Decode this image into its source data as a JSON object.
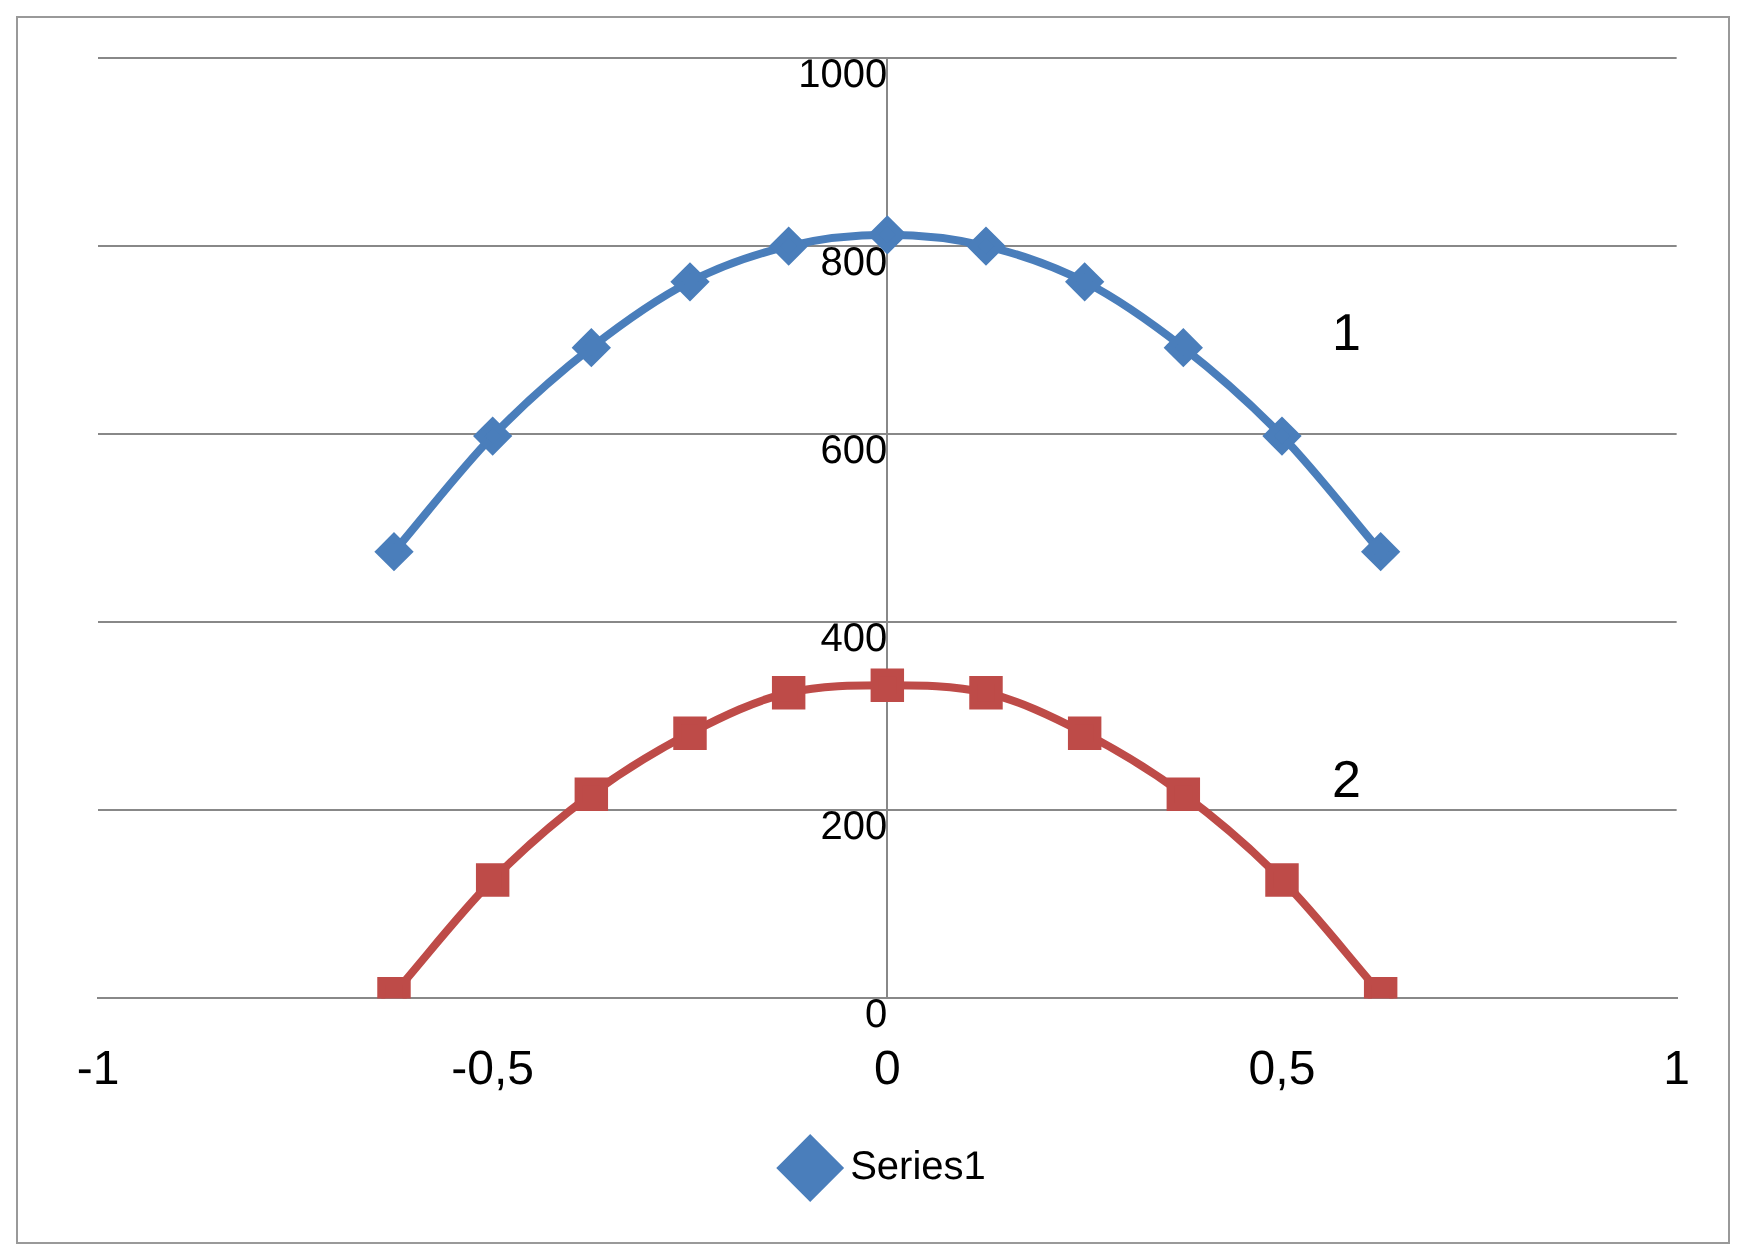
{
  "chart_data": {
    "type": "line",
    "x": [
      -0.625,
      -0.5,
      -0.375,
      -0.25,
      -0.125,
      0,
      0.125,
      0.25,
      0.375,
      0.5,
      0.625
    ],
    "series": [
      {
        "name": "Series1",
        "color": "#4a7ebb",
        "marker": "diamond",
        "values": [
          475,
          598,
          692,
          762,
          800,
          812,
          800,
          762,
          692,
          598,
          475
        ]
      },
      {
        "color": "#be4b48",
        "marker": "square",
        "values": [
          5,
          126,
          217,
          282,
          325,
          333,
          325,
          282,
          217,
          126,
          5
        ]
      }
    ],
    "xlim": [
      -1,
      1
    ],
    "xticks": [
      -1,
      {
        "value": -0.5,
        "label": "-0,5"
      },
      0,
      {
        "value": 0.5,
        "label": "0,5"
      },
      1
    ],
    "ylim": [
      0,
      1000
    ],
    "yticks": [
      0,
      200,
      400,
      600,
      800,
      1000
    ],
    "grid": "y",
    "legend": "bottom",
    "annotations": [
      "1",
      "2"
    ]
  }
}
